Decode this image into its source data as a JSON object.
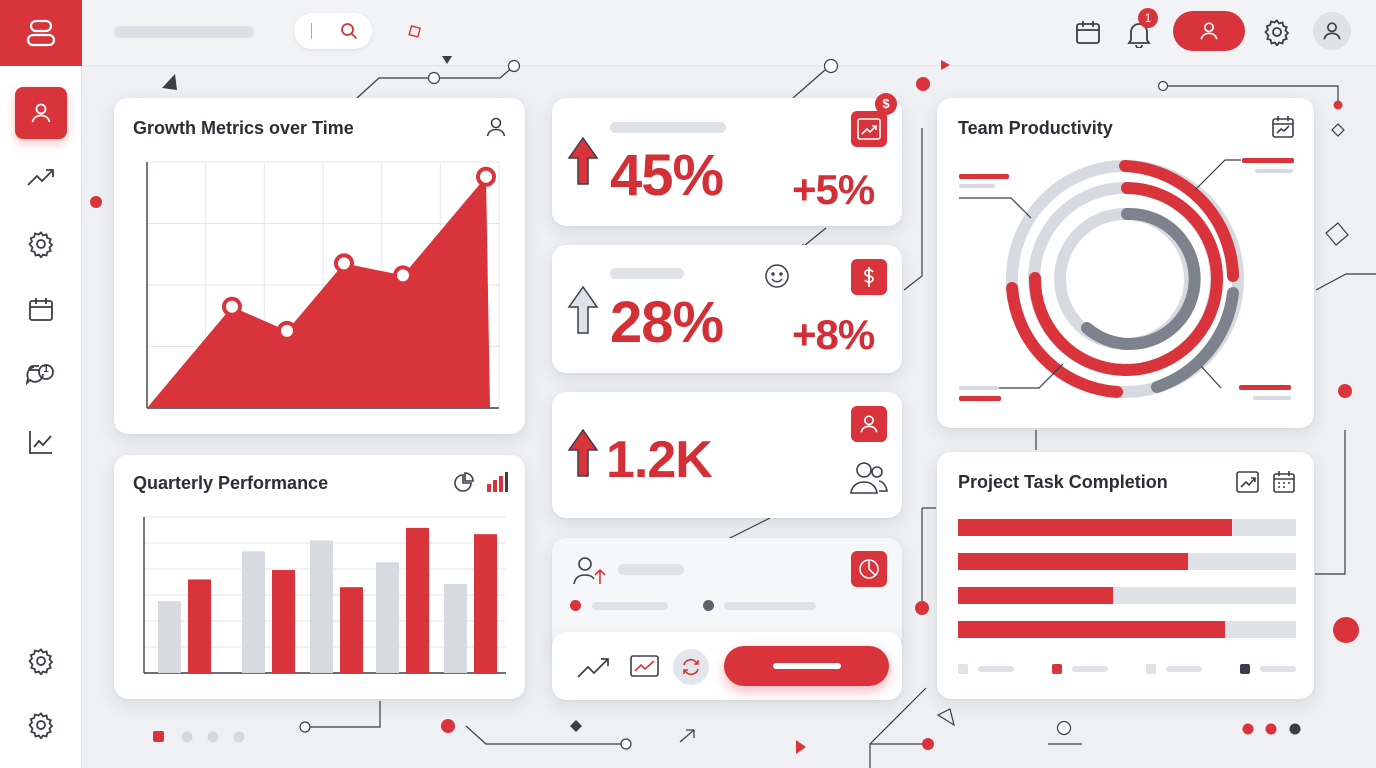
{
  "colors": {
    "accent": "#d9343b",
    "grey_bar": "#d7dbe1",
    "dark_grey": "#7c838c",
    "background": "#eef0f3"
  },
  "sidebar": {
    "items": [
      {
        "icon": "user-icon",
        "active": true
      },
      {
        "icon": "trending-up-icon"
      },
      {
        "icon": "gear-icon"
      },
      {
        "icon": "calendar-icon"
      },
      {
        "icon": "chat-notification-icon",
        "badge": "1"
      },
      {
        "icon": "line-chart-icon"
      }
    ],
    "bottom_items": [
      {
        "icon": "gear-icon"
      },
      {
        "icon": "gear-icon"
      }
    ]
  },
  "topbar": {
    "notification_count": "1"
  },
  "growth_chart": {
    "title": "Growth Metrics over Time"
  },
  "quarterly_chart": {
    "title": "Quarterly Performance"
  },
  "kpis": [
    {
      "value": "45%",
      "delta": "+5%"
    },
    {
      "value": "28%",
      "delta": "+8%"
    },
    {
      "value": "1.2K"
    }
  ],
  "productivity": {
    "title": "Team Productivity"
  },
  "tasks": {
    "title": "Project Task Completion",
    "progress": [
      0.81,
      0.68,
      0.46,
      0.79
    ]
  },
  "chart_data": [
    {
      "type": "area",
      "title": "Growth Metrics over Time",
      "x": [
        1,
        2,
        3,
        4,
        5,
        6
      ],
      "values": [
        0.42,
        0.32,
        0.6,
        0.55,
        0.88,
        1.0
      ],
      "grid": true
    },
    {
      "type": "bar",
      "title": "Quarterly Performance",
      "series": [
        {
          "color": "#d7dbe1",
          "values": [
            0.46,
            0.78,
            0.85,
            0.71,
            0.57
          ]
        },
        {
          "color": "#d9343b",
          "values": [
            0.6,
            0.66,
            0.55,
            0.93,
            0.89
          ]
        }
      ],
      "grid": true
    }
  ]
}
